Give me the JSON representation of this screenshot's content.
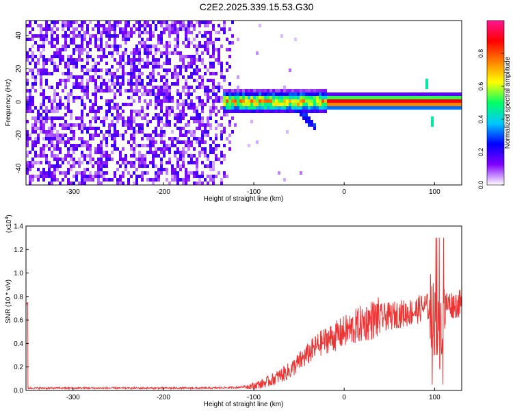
{
  "title": "C2E2.2025.339.15.53.G30",
  "chart_data": [
    {
      "type": "heatmap",
      "xlabel": "Height of straight line (km)",
      "ylabel": "Frequency (Hz)",
      "xlim": [
        -352,
        130
      ],
      "ylim": [
        -50,
        49
      ],
      "xticks": [
        -300,
        -200,
        -100,
        0,
        100
      ],
      "yticks": [
        -40,
        -20,
        0,
        20,
        40
      ],
      "colorbar": {
        "label": "Normalized spectral amplitude",
        "range": [
          0,
          1
        ],
        "ticks": [
          "0.0",
          "0.2",
          "0.4",
          "0.6",
          "0.8"
        ],
        "tick_values": [
          0.0,
          0.2,
          0.4,
          0.6,
          0.8
        ],
        "colormap": [
          "#ffffff",
          "#7f00ff",
          "#0000ff",
          "#00c8ff",
          "#00ff64",
          "#ffff00",
          "#ff8000",
          "#ff0000",
          "#ff1493"
        ]
      },
      "features": [
        {
          "kind": "noise",
          "x_range": [
            -352,
            -120
          ],
          "y_range": [
            -50,
            49
          ],
          "amplitude": 0.12
        },
        {
          "kind": "line",
          "x_range": [
            -135,
            130
          ],
          "y": 0,
          "amplitude": 0.9
        },
        {
          "kind": "spike",
          "x": 95,
          "y_range": [
            -20,
            15
          ],
          "amplitude": 0.45
        }
      ]
    },
    {
      "type": "line",
      "xlabel": "Height of straight line (km)",
      "ylabel": "SNR (10 * v/v)",
      "y_multiplier": "(x10",
      "y_multiplier_exp": "4",
      "y_multiplier_close": ")",
      "xlim": [
        -352,
        130
      ],
      "ylim": [
        0,
        1.4
      ],
      "xticks": [
        -300,
        -200,
        -100,
        0,
        100
      ],
      "yticks": [
        "0.0",
        "0.2",
        "0.4",
        "0.6",
        "0.8",
        "1.0",
        "1.2",
        "1.4"
      ],
      "ytick_values": [
        0.0,
        0.2,
        0.4,
        0.6,
        0.8,
        1.0,
        1.2,
        1.4
      ],
      "color": "#ee3333",
      "series": [
        {
          "x": [
            -350,
            -300,
            -250,
            -200,
            -150,
            -120,
            -100,
            -90,
            -80,
            -70,
            -60,
            -50,
            -40,
            -30,
            -20,
            -10,
            0,
            10,
            20,
            30,
            40,
            50,
            60,
            70,
            80,
            85,
            90,
            95,
            100,
            105,
            110,
            115,
            120,
            130
          ],
          "y": [
            0.02,
            0.02,
            0.02,
            0.02,
            0.02,
            0.025,
            0.04,
            0.06,
            0.09,
            0.13,
            0.17,
            0.24,
            0.31,
            0.38,
            0.43,
            0.46,
            0.5,
            0.53,
            0.57,
            0.6,
            0.62,
            0.63,
            0.65,
            0.66,
            0.68,
            0.7,
            0.72,
            0.7,
            0.6,
            0.45,
            0.72,
            0.74,
            0.73,
            0.74
          ]
        }
      ]
    }
  ]
}
